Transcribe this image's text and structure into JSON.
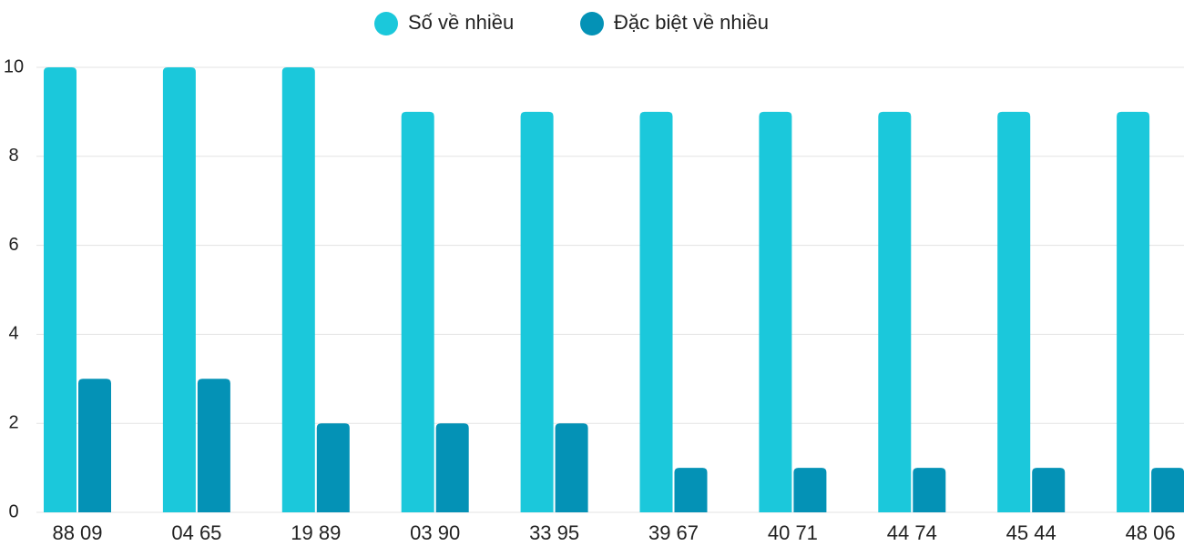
{
  "chart_data": {
    "type": "bar",
    "categories": [
      "88 09",
      "04 65",
      "19 89",
      "03 90",
      "33 95",
      "39 67",
      "40 71",
      "44 74",
      "45 44",
      "48 06"
    ],
    "series": [
      {
        "name": "Số về nhiều",
        "color": "#1bc8db",
        "values": [
          10,
          10,
          10,
          9,
          9,
          9,
          9,
          9,
          9,
          9
        ]
      },
      {
        "name": "Đặc biệt về nhiều",
        "color": "#0492b6",
        "values": [
          3,
          3,
          2,
          2,
          2,
          1,
          1,
          1,
          1,
          1
        ]
      }
    ],
    "ylim": [
      0,
      10
    ],
    "yticks": [
      0,
      2,
      4,
      6,
      8,
      10
    ],
    "grid": true,
    "legend": "top"
  }
}
